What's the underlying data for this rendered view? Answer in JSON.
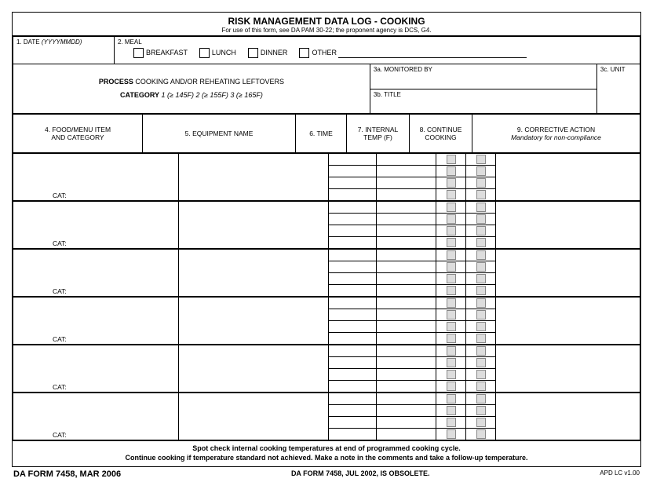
{
  "header": {
    "title": "RISK MANAGEMENT DATA LOG - COOKING",
    "subtitle": "For use of this form, see DA PAM 30-22; the proponent agency is DCS, G4."
  },
  "row1": {
    "date_label": "1.  DATE ",
    "date_fmt": "(YYYYMMDD)",
    "meal_label": "2.  MEAL",
    "breakfast": "BREAKFAST",
    "lunch": "LUNCH",
    "dinner": "DINNER",
    "other": "OTHER"
  },
  "row2": {
    "process_label": "PROCESS",
    "process_text": "  COOKING AND/OR REHEATING LEFTOVERS",
    "category_label": "CATEGORY",
    "category_text": "  1 (≥ 145F)    2 (≥ 155F)    3 (≥ 165F)",
    "mon_by": "3a.  MONITORED BY",
    "title": "3b.  TITLE",
    "unit": "3c.  UNIT"
  },
  "cols": {
    "c4a": "4.  FOOD/MENU ITEM",
    "c4b": "AND CATEGORY",
    "c5": "5.  EQUIPMENT NAME",
    "c6": "6.  TIME",
    "c7a": "7.  INTERNAL",
    "c7b": "TEMP (F)",
    "c8a": "8.  CONTINUE",
    "c8b": "COOKING",
    "c9a": "9.  CORRECTIVE ACTION",
    "c9b": "Mandatory for non-compliance"
  },
  "cat": "CAT:",
  "foot": {
    "l1": "Spot check internal cooking temperatures at end of programmed cooking cycle.",
    "l2": "Continue cooking if temperature standard not achieved.  Make a note in the comments and take a follow-up temperature."
  },
  "bottom": {
    "left": "DA FORM 7458, MAR 2006",
    "mid": "DA FORM 7458, JUL 2002, IS OBSOLETE.",
    "right": "APD LC v1.00"
  }
}
